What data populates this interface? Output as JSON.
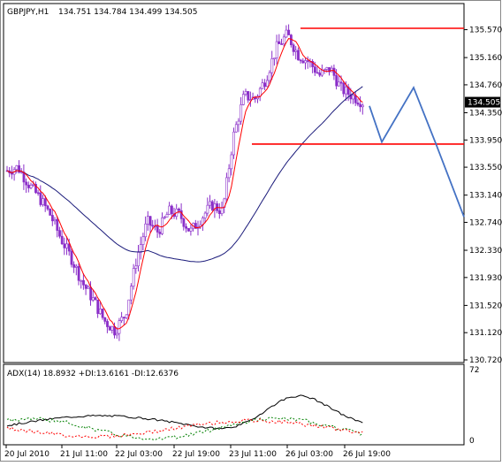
{
  "chart_data": [
    {
      "type": "candlestick",
      "symbol_header": "GBPJPY,H1",
      "ohlc_header": "134.751 134.784 134.499 134.505",
      "current_price": 134.505,
      "ylim": [
        130.72,
        135.72
      ],
      "y_ticks": [
        135.57,
        135.16,
        134.76,
        134.35,
        133.95,
        133.55,
        133.14,
        132.74,
        132.33,
        131.93,
        131.52,
        131.12,
        130.72
      ],
      "x_ticks": [
        "20 Jul 2010",
        "21 Jul 11:00",
        "22 Jul 03:00",
        "22 Jul 19:00",
        "23 Jul 11:00",
        "26 Jul 03:00",
        "26 Jul 19:00"
      ],
      "key_closes": [
        133.5,
        133.55,
        133.3,
        133.1,
        132.85,
        132.5,
        132.2,
        131.85,
        131.6,
        131.3,
        131.15,
        131.4,
        132.2,
        132.75,
        132.6,
        132.9,
        132.85,
        132.6,
        132.8,
        133.0,
        132.9,
        134.0,
        134.6,
        134.55,
        134.85,
        135.3,
        135.5,
        135.2,
        135.1,
        134.9,
        135.0,
        134.7,
        134.6,
        134.505
      ],
      "horizontal_lines": [
        {
          "price": 135.59,
          "color": "#ff0000"
        },
        {
          "price": 133.89,
          "color": "#ff0000"
        }
      ],
      "projection": [
        134.45,
        133.92,
        134.72,
        133.9,
        132.82
      ],
      "colors": {
        "candle": "#8b2fc9",
        "fast_ma": "#ff0000",
        "slow_ma": "#1a1a7a",
        "projection": "#4472c4",
        "price_label_bg": "#000000"
      }
    },
    {
      "type": "line",
      "label": "ADX(14) 18.8932 +DI:13.6161 -DI:12.6376",
      "ylim": [
        0,
        72
      ],
      "y_ticks": [
        72,
        0
      ],
      "series": [
        {
          "name": "ADX(14)",
          "color": "#000000",
          "style": "solid"
        },
        {
          "name": "+DI",
          "color": "#008000",
          "style": "dashed"
        },
        {
          "name": "-DI",
          "color": "#ff0000",
          "style": "dashed"
        }
      ]
    }
  ]
}
